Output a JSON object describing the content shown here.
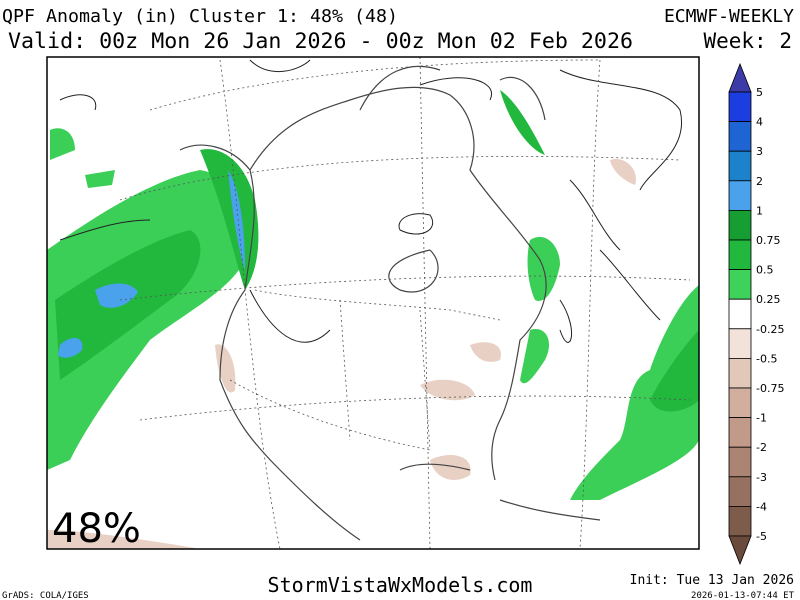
{
  "header": {
    "title": "QPF Anomaly (in) Cluster 1: 48% (48)",
    "model": "ECMWF-WEEKLY",
    "valid": "Valid: 00z Mon 26 Jan 2026 - 00z Mon 02 Feb 2026",
    "week": "Week: 2"
  },
  "map": {
    "cluster_percent_label": "48%"
  },
  "colorbar": {
    "labels": [
      5,
      4,
      3,
      2,
      1,
      0.75,
      0.5,
      0.25,
      -0.25,
      -0.5,
      -0.75,
      -1,
      -2,
      -3,
      -4,
      -5
    ],
    "colors": [
      "#3c3ca8",
      "#1c3ee0",
      "#1e64d2",
      "#1c82cc",
      "#4aa2ec",
      "#169e32",
      "#22b83e",
      "#3ed25a",
      "#ffffff",
      "#f2e2da",
      "#e2c8b8",
      "#d2ae9e",
      "#c29a8a",
      "#ac8474",
      "#967060",
      "#7e5c4c",
      "#6a4a3a"
    ]
  },
  "footer": {
    "site": "StormVistaWxModels.com",
    "init": "Init: Tue 13 Jan 2026",
    "timestamp": "2026-01-13-07:44 ET",
    "credit": "GrADS: COLA/IGES"
  }
}
